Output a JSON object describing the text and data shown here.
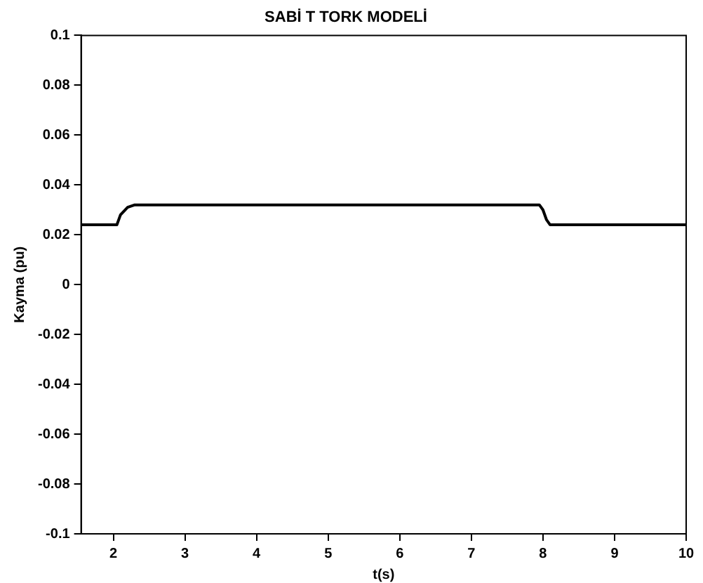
{
  "chart_data": {
    "type": "line",
    "title": "SABİ T TORK MODELİ",
    "xlabel": "t(s)",
    "ylabel": "Kayma (pu)",
    "series": [
      {
        "color": "#000000",
        "x": [
          1.55,
          2.05,
          2.1,
          2.2,
          2.3,
          3,
          4,
          5,
          6,
          7,
          7.95,
          8.0,
          8.05,
          8.1,
          9,
          10
        ],
        "values": [
          0.024,
          0.024,
          0.028,
          0.031,
          0.032,
          0.032,
          0.032,
          0.032,
          0.032,
          0.032,
          0.032,
          0.03,
          0.026,
          0.024,
          0.024,
          0.024
        ]
      }
    ],
    "xlim": [
      1.55,
      10
    ],
    "xticks": [
      2,
      3,
      4,
      5,
      6,
      7,
      8,
      9,
      10
    ],
    "ylim": [
      -0.1,
      0.1
    ],
    "yticks": [
      -0.1,
      -0.08,
      -0.06,
      -0.04,
      -0.02,
      0,
      0.02,
      0.04,
      0.06,
      0.08,
      0.1
    ],
    "grid": false,
    "legend": false,
    "marker": "none",
    "line_style": "solid"
  }
}
